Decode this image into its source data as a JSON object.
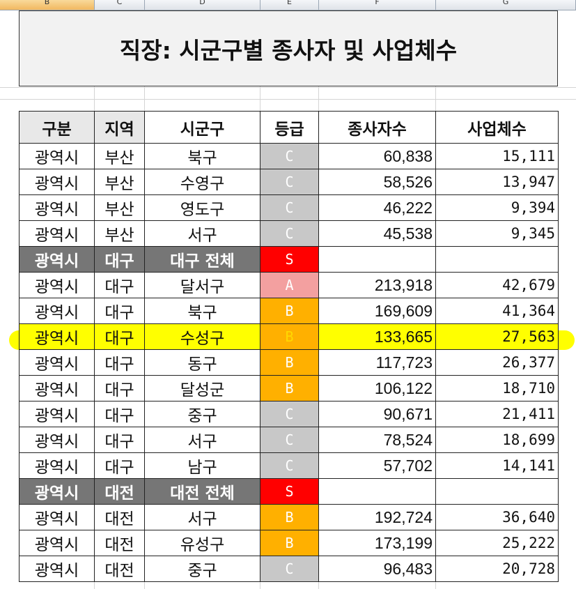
{
  "column_headers": [
    {
      "label": "B",
      "selected": true
    },
    {
      "label": "C",
      "selected": false
    },
    {
      "label": "D",
      "selected": false
    },
    {
      "label": "E",
      "selected": false
    },
    {
      "label": "F",
      "selected": false
    },
    {
      "label": "G",
      "selected": false
    }
  ],
  "title": "직장: 시군구별 종사자 및 사업체수",
  "table": {
    "headers": [
      "구분",
      "지역",
      "시군구",
      "등급",
      "종사자수",
      "사업체수"
    ],
    "rows": [
      {
        "type": "normal",
        "gubun": "광역시",
        "region": "부산",
        "district": "북구",
        "grade": "C",
        "employees": "60,838",
        "businesses": "15,111"
      },
      {
        "type": "normal",
        "gubun": "광역시",
        "region": "부산",
        "district": "수영구",
        "grade": "C",
        "employees": "58,526",
        "businesses": "13,947"
      },
      {
        "type": "normal",
        "gubun": "광역시",
        "region": "부산",
        "district": "영도구",
        "grade": "C",
        "employees": "46,222",
        "businesses": "9,394"
      },
      {
        "type": "normal",
        "gubun": "광역시",
        "region": "부산",
        "district": "서구",
        "grade": "C",
        "employees": "45,538",
        "businesses": "9,345"
      },
      {
        "type": "total",
        "gubun": "광역시",
        "region": "대구",
        "district": "대구 전체",
        "grade": "S",
        "employees": "",
        "businesses": ""
      },
      {
        "type": "normal",
        "gubun": "광역시",
        "region": "대구",
        "district": "달서구",
        "grade": "A",
        "employees": "213,918",
        "businesses": "42,679"
      },
      {
        "type": "normal",
        "gubun": "광역시",
        "region": "대구",
        "district": "북구",
        "grade": "B",
        "employees": "169,609",
        "businesses": "41,364"
      },
      {
        "type": "highlight",
        "gubun": "광역시",
        "region": "대구",
        "district": "수성구",
        "grade": "B",
        "employees": "133,665",
        "businesses": "27,563"
      },
      {
        "type": "normal",
        "gubun": "광역시",
        "region": "대구",
        "district": "동구",
        "grade": "B",
        "employees": "117,723",
        "businesses": "26,377"
      },
      {
        "type": "normal",
        "gubun": "광역시",
        "region": "대구",
        "district": "달성군",
        "grade": "B",
        "employees": "106,122",
        "businesses": "18,710"
      },
      {
        "type": "normal",
        "gubun": "광역시",
        "region": "대구",
        "district": "중구",
        "grade": "C",
        "employees": "90,671",
        "businesses": "21,411"
      },
      {
        "type": "normal",
        "gubun": "광역시",
        "region": "대구",
        "district": "서구",
        "grade": "C",
        "employees": "78,524",
        "businesses": "18,699"
      },
      {
        "type": "normal",
        "gubun": "광역시",
        "region": "대구",
        "district": "남구",
        "grade": "C",
        "employees": "57,702",
        "businesses": "14,141"
      },
      {
        "type": "total",
        "gubun": "광역시",
        "region": "대전",
        "district": "대전 전체",
        "grade": "S",
        "employees": "",
        "businesses": ""
      },
      {
        "type": "normal",
        "gubun": "광역시",
        "region": "대전",
        "district": "서구",
        "grade": "B",
        "employees": "192,724",
        "businesses": "36,640"
      },
      {
        "type": "normal",
        "gubun": "광역시",
        "region": "대전",
        "district": "유성구",
        "grade": "B",
        "employees": "173,199",
        "businesses": "25,222"
      },
      {
        "type": "normal",
        "gubun": "광역시",
        "region": "대전",
        "district": "중구",
        "grade": "C",
        "employees": "96,483",
        "businesses": "20,728"
      }
    ]
  },
  "colors": {
    "grade_S": "#ff0000",
    "grade_A": "#f3a0a0",
    "grade_B": "#ffb000",
    "grade_C": "#c8c8c8",
    "highlight": "#ffff00",
    "total_row": "#767676"
  }
}
